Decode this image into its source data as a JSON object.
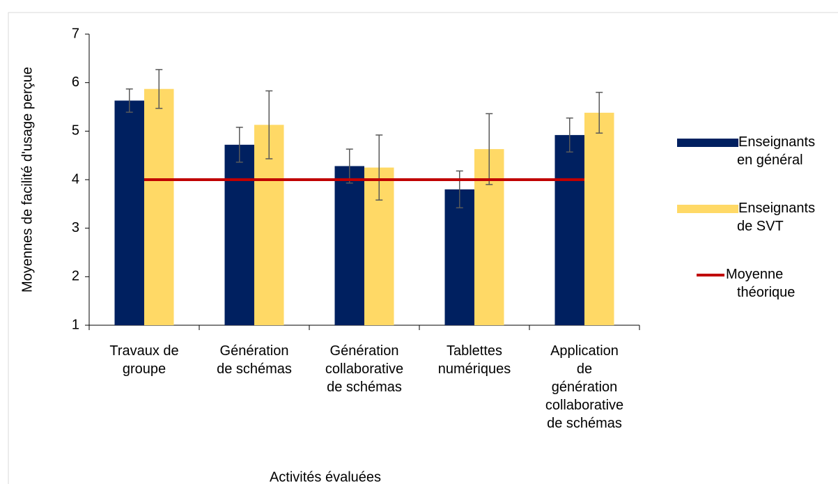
{
  "chart_data": {
    "type": "bar",
    "xlabel": "Activités évaluées",
    "ylabel": "Moyennes de facilité d'usage perçue",
    "categories": [
      "Travaux de\ngroupe",
      "Génération\nde schémas",
      "Génération\ncollaborative\nde schémas",
      "Tablettes\nnumériques",
      "Application\nde\ngénération\ncollaborative\nde schémas"
    ],
    "series": [
      {
        "name": "Enseignants\nen général",
        "type": "bar",
        "color": "#002060",
        "values": [
          5.63,
          4.72,
          4.28,
          3.8,
          4.92
        ],
        "errors": [
          0.24,
          0.36,
          0.35,
          0.38,
          0.35
        ]
      },
      {
        "name": "Enseignants\nde SVT",
        "type": "bar",
        "color": "#FFD966",
        "values": [
          5.87,
          5.13,
          4.25,
          4.63,
          5.38
        ],
        "errors": [
          0.4,
          0.7,
          0.67,
          0.73,
          0.42
        ]
      },
      {
        "name": "Moyenne\nthéorique",
        "type": "line",
        "color": "#C00000",
        "values": [
          4,
          4,
          4,
          4,
          4
        ]
      }
    ],
    "ylim": [
      1,
      7
    ],
    "yticks": [
      1,
      2,
      3,
      4,
      5,
      6,
      7
    ],
    "legend": "right"
  }
}
